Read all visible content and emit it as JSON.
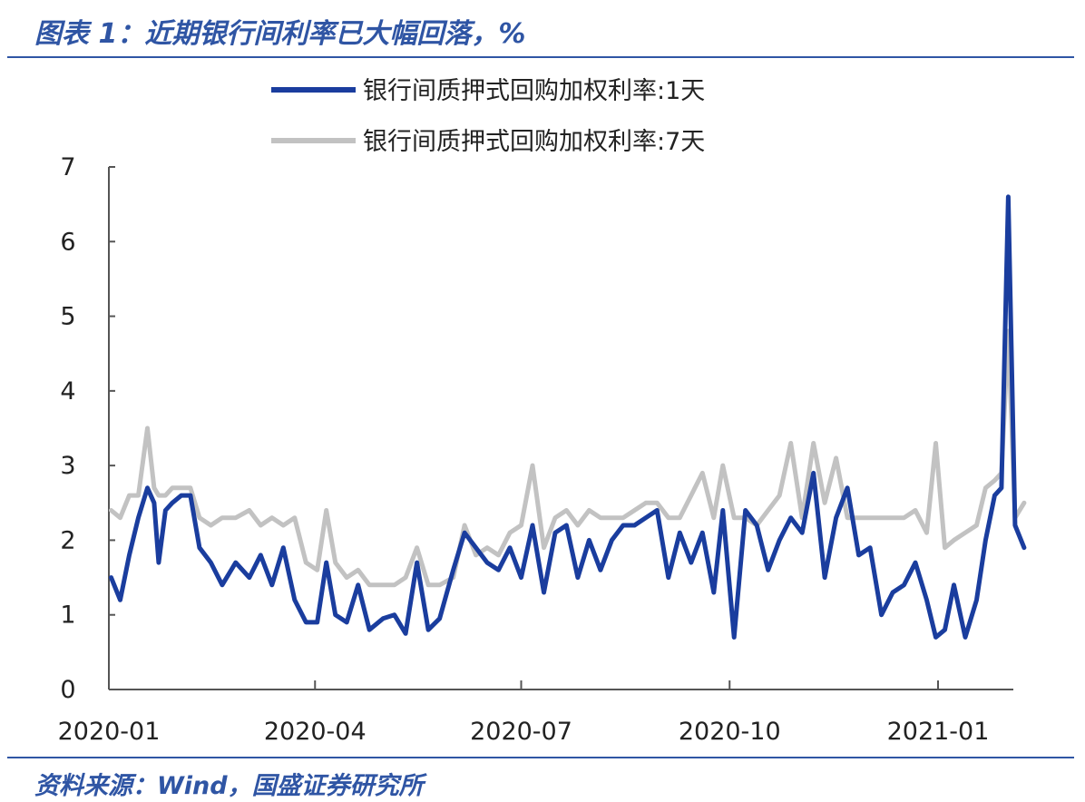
{
  "header": {
    "title": "图表 1：近期银行间利率已大幅回落，%"
  },
  "footer": {
    "source": "资料来源：Wind，国盛证券研究所"
  },
  "chart_data": {
    "type": "line",
    "title": "",
    "xlabel": "",
    "ylabel": "",
    "ylim": [
      0,
      7
    ],
    "yticks": [
      0,
      1,
      2,
      3,
      4,
      5,
      6,
      7
    ],
    "xticks": [
      "2020-01",
      "2020-04",
      "2020-07",
      "2020-10",
      "2021-01"
    ],
    "grid": false,
    "legend": "top-center",
    "series": [
      {
        "name": "银行间质押式回购加权利率:1天",
        "color": "#1a3d9e",
        "x": [
          "2020-01-02",
          "2020-01-06",
          "2020-01-10",
          "2020-01-14",
          "2020-01-18",
          "2020-01-21",
          "2020-01-23",
          "2020-01-26",
          "2020-01-29",
          "2020-02-02",
          "2020-02-06",
          "2020-02-10",
          "2020-02-15",
          "2020-02-20",
          "2020-02-26",
          "2020-03-03",
          "2020-03-08",
          "2020-03-13",
          "2020-03-18",
          "2020-03-23",
          "2020-03-28",
          "2020-04-02",
          "2020-04-06",
          "2020-04-10",
          "2020-04-15",
          "2020-04-20",
          "2020-04-25",
          "2020-05-01",
          "2020-05-06",
          "2020-05-11",
          "2020-05-16",
          "2020-05-21",
          "2020-05-26",
          "2020-06-01",
          "2020-06-06",
          "2020-06-11",
          "2020-06-16",
          "2020-06-21",
          "2020-06-26",
          "2020-07-01",
          "2020-07-06",
          "2020-07-11",
          "2020-07-16",
          "2020-07-21",
          "2020-07-26",
          "2020-07-31",
          "2020-08-05",
          "2020-08-10",
          "2020-08-15",
          "2020-08-20",
          "2020-08-25",
          "2020-08-30",
          "2020-09-04",
          "2020-09-09",
          "2020-09-14",
          "2020-09-19",
          "2020-09-24",
          "2020-09-28",
          "2020-10-03",
          "2020-10-08",
          "2020-10-13",
          "2020-10-18",
          "2020-10-23",
          "2020-10-28",
          "2020-11-02",
          "2020-11-07",
          "2020-11-12",
          "2020-11-17",
          "2020-11-22",
          "2020-11-27",
          "2020-12-02",
          "2020-12-07",
          "2020-12-12",
          "2020-12-17",
          "2020-12-22",
          "2020-12-27",
          "2020-12-31",
          "2021-01-04",
          "2021-01-08",
          "2021-01-13",
          "2021-01-18",
          "2021-01-22",
          "2021-01-26",
          "2021-01-29",
          "2021-02-01",
          "2021-02-04",
          "2021-02-08"
        ],
        "values": [
          1.5,
          1.2,
          1.8,
          2.3,
          2.7,
          2.5,
          1.7,
          2.4,
          2.5,
          2.6,
          2.6,
          1.9,
          1.7,
          1.4,
          1.7,
          1.5,
          1.8,
          1.4,
          1.9,
          1.2,
          0.9,
          0.9,
          1.7,
          1.0,
          0.9,
          1.4,
          0.8,
          0.95,
          1.0,
          0.75,
          1.7,
          0.8,
          0.95,
          1.6,
          2.1,
          1.9,
          1.7,
          1.6,
          1.9,
          1.5,
          2.2,
          1.3,
          2.1,
          2.2,
          1.5,
          2.0,
          1.6,
          2.0,
          2.2,
          2.2,
          2.3,
          2.4,
          1.5,
          2.1,
          1.7,
          2.1,
          1.3,
          2.4,
          0.7,
          2.4,
          2.2,
          1.6,
          2.0,
          2.3,
          2.1,
          2.9,
          1.5,
          2.3,
          2.7,
          1.8,
          1.9,
          1.0,
          1.3,
          1.4,
          1.7,
          1.2,
          0.7,
          0.8,
          1.4,
          0.7,
          1.2,
          2.0,
          2.6,
          2.7,
          6.6,
          2.2,
          1.9
        ]
      },
      {
        "name": "银行间质押式回购加权利率:7天",
        "color": "#c2c2c2",
        "x": [
          "2020-01-02",
          "2020-01-06",
          "2020-01-10",
          "2020-01-14",
          "2020-01-18",
          "2020-01-21",
          "2020-01-23",
          "2020-01-26",
          "2020-01-29",
          "2020-02-02",
          "2020-02-06",
          "2020-02-10",
          "2020-02-15",
          "2020-02-20",
          "2020-02-26",
          "2020-03-03",
          "2020-03-08",
          "2020-03-13",
          "2020-03-18",
          "2020-03-23",
          "2020-03-28",
          "2020-04-02",
          "2020-04-06",
          "2020-04-10",
          "2020-04-15",
          "2020-04-20",
          "2020-04-25",
          "2020-05-01",
          "2020-05-06",
          "2020-05-11",
          "2020-05-16",
          "2020-05-21",
          "2020-05-26",
          "2020-06-01",
          "2020-06-06",
          "2020-06-11",
          "2020-06-16",
          "2020-06-21",
          "2020-06-26",
          "2020-07-01",
          "2020-07-06",
          "2020-07-11",
          "2020-07-16",
          "2020-07-21",
          "2020-07-26",
          "2020-07-31",
          "2020-08-05",
          "2020-08-10",
          "2020-08-15",
          "2020-08-20",
          "2020-08-25",
          "2020-08-30",
          "2020-09-04",
          "2020-09-09",
          "2020-09-14",
          "2020-09-19",
          "2020-09-24",
          "2020-09-28",
          "2020-10-03",
          "2020-10-08",
          "2020-10-13",
          "2020-10-18",
          "2020-10-23",
          "2020-10-28",
          "2020-11-02",
          "2020-11-07",
          "2020-11-12",
          "2020-11-17",
          "2020-11-22",
          "2020-11-27",
          "2020-12-02",
          "2020-12-07",
          "2020-12-12",
          "2020-12-17",
          "2020-12-22",
          "2020-12-27",
          "2020-12-31",
          "2021-01-04",
          "2021-01-08",
          "2021-01-13",
          "2021-01-18",
          "2021-01-22",
          "2021-01-26",
          "2021-01-29",
          "2021-02-01",
          "2021-02-04",
          "2021-02-08"
        ],
        "values": [
          2.4,
          2.3,
          2.6,
          2.6,
          3.5,
          2.7,
          2.6,
          2.6,
          2.7,
          2.7,
          2.7,
          2.3,
          2.2,
          2.3,
          2.3,
          2.4,
          2.2,
          2.3,
          2.2,
          2.3,
          1.7,
          1.6,
          2.4,
          1.7,
          1.5,
          1.6,
          1.4,
          1.4,
          1.4,
          1.5,
          1.9,
          1.4,
          1.4,
          1.5,
          2.2,
          1.8,
          1.9,
          1.8,
          2.1,
          2.2,
          3.0,
          1.9,
          2.3,
          2.4,
          2.2,
          2.4,
          2.3,
          2.3,
          2.3,
          2.4,
          2.5,
          2.5,
          2.3,
          2.3,
          2.6,
          2.9,
          2.3,
          3.0,
          2.3,
          2.3,
          2.2,
          2.4,
          2.6,
          3.3,
          2.3,
          3.3,
          2.5,
          3.1,
          2.3,
          2.3,
          2.3,
          2.3,
          2.3,
          2.3,
          2.4,
          2.1,
          3.3,
          1.9,
          2.0,
          2.1,
          2.2,
          2.7,
          2.8,
          2.9,
          4.8,
          2.3,
          2.5
        ]
      }
    ]
  }
}
